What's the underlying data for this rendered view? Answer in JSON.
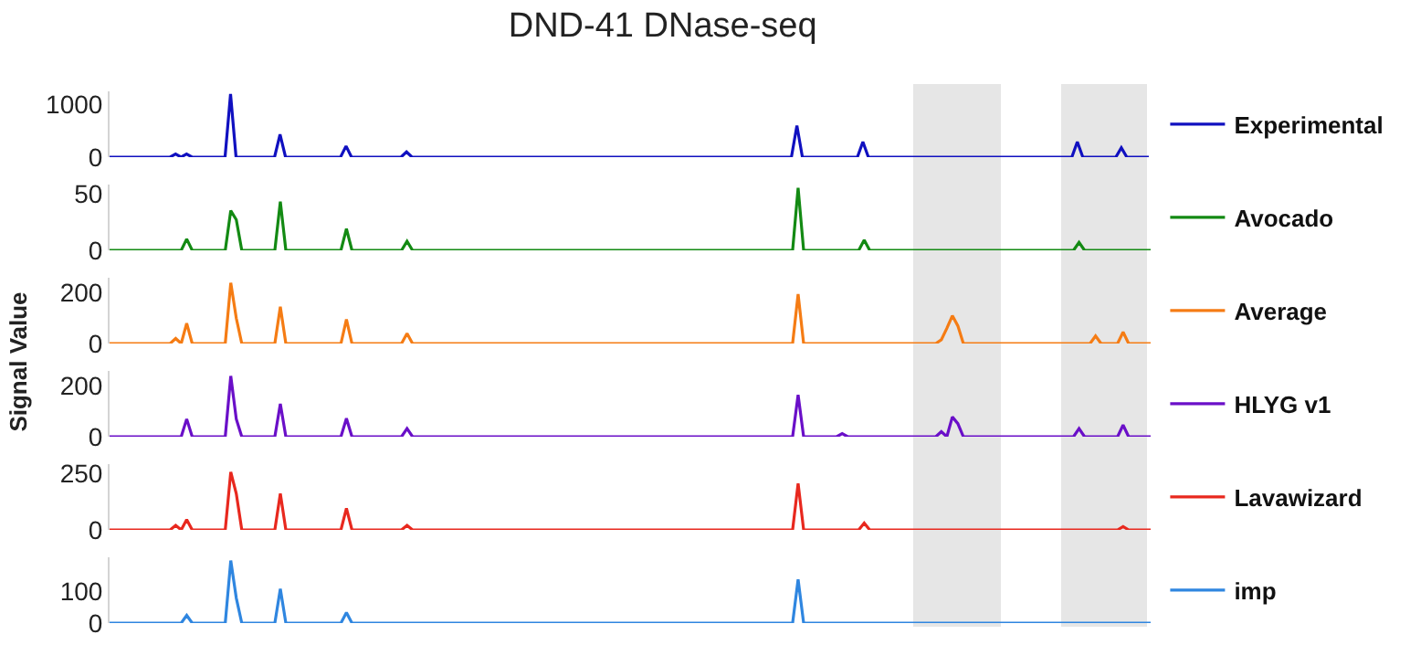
{
  "chart_data": [
    {
      "type": "line",
      "title": "DND-41 DNase-seq",
      "legend": "right",
      "tick_labels": "y",
      "grid": false,
      "marker": "none",
      "line_style": "solid",
      "ylim": [
        0,
        1250
      ],
      "yticks": [
        0,
        1000
      ],
      "categories": [
        null,
        null,
        null,
        null,
        null,
        null,
        null,
        null,
        null,
        null,
        null,
        null,
        null,
        null,
        null,
        null,
        null,
        null,
        null,
        null,
        null,
        null,
        null,
        null,
        null,
        null,
        null,
        null,
        null,
        null,
        null,
        null,
        null,
        null,
        null,
        null,
        null,
        null,
        null,
        null,
        null,
        null,
        null,
        null,
        null,
        null,
        null,
        null,
        null,
        null,
        null,
        null,
        null,
        null,
        null,
        null,
        null,
        null,
        null,
        null,
        null,
        null,
        null,
        null,
        null,
        null,
        null,
        null,
        null,
        null,
        null,
        null,
        null,
        null,
        null,
        null,
        null,
        null,
        null,
        null,
        null,
        null,
        null,
        null,
        null,
        null,
        null,
        null,
        null,
        null,
        null,
        null,
        null,
        null,
        null,
        null,
        null,
        null,
        null,
        null,
        null,
        null,
        null,
        null,
        null,
        null,
        null,
        null,
        null,
        null,
        null,
        null,
        null,
        null,
        null,
        null,
        null,
        null,
        null,
        null,
        null,
        null,
        null,
        null,
        null,
        null,
        null,
        null,
        null,
        null,
        null,
        null,
        null,
        null,
        null,
        null,
        null,
        null,
        null,
        null,
        null,
        null,
        null,
        null,
        null,
        null,
        null,
        null,
        null,
        null,
        null,
        null,
        null,
        null,
        null,
        null,
        null,
        null,
        null,
        null,
        null,
        null,
        null,
        null,
        null,
        null,
        null,
        null,
        null,
        null,
        null,
        null,
        null,
        null,
        null,
        null,
        null,
        null,
        null,
        null,
        null,
        null,
        null,
        null,
        null,
        null,
        null,
        null,
        null,
        null
      ],
      "series": [
        {
          "name": "Experimental",
          "color": "#1010c0",
          "values": [
            0,
            0,
            0,
            0,
            0,
            0,
            0,
            0,
            0,
            0,
            0,
            0,
            60,
            0,
            60,
            0,
            0,
            0,
            0,
            0,
            0,
            0,
            1200,
            0,
            0,
            0,
            0,
            0,
            0,
            0,
            0,
            430,
            0,
            0,
            0,
            0,
            0,
            0,
            0,
            0,
            0,
            0,
            0,
            210,
            0,
            0,
            0,
            0,
            0,
            0,
            0,
            0,
            0,
            0,
            100,
            0,
            0,
            0,
            0,
            0,
            0,
            0,
            0,
            0,
            0,
            0,
            0,
            0,
            0,
            0,
            0,
            0,
            0,
            0,
            0,
            0,
            0,
            0,
            0,
            0,
            0,
            0,
            0,
            0,
            0,
            0,
            0,
            0,
            0,
            0,
            0,
            0,
            0,
            0,
            0,
            0,
            0,
            0,
            0,
            0,
            0,
            0,
            0,
            0,
            0,
            0,
            0,
            0,
            0,
            0,
            0,
            0,
            0,
            0,
            0,
            0,
            0,
            0,
            0,
            0,
            0,
            0,
            0,
            0,
            0,
            600,
            0,
            0,
            0,
            0,
            0,
            0,
            0,
            0,
            0,
            0,
            0,
            290,
            0,
            0,
            0,
            0,
            0,
            0,
            0,
            0,
            0,
            0,
            0,
            0,
            0,
            0,
            0,
            0,
            0,
            0,
            0,
            0,
            0,
            0,
            0,
            0,
            0,
            0,
            0,
            0,
            0,
            0,
            0,
            0,
            0,
            0,
            0,
            0,
            0,
            0,
            290,
            0,
            0,
            0,
            0,
            0,
            0,
            0,
            180,
            0,
            0,
            0,
            0,
            0
          ]
        }
      ]
    },
    {
      "type": "line",
      "legend": "right",
      "tick_labels": "y",
      "grid": false,
      "marker": "none",
      "line_style": "solid",
      "ylim": [
        0,
        58
      ],
      "yticks": [
        0,
        50
      ],
      "categories": [
        null,
        null,
        null,
        null,
        null,
        null,
        null,
        null,
        null,
        null,
        null,
        null,
        null,
        null,
        null,
        null,
        null,
        null,
        null,
        null,
        null,
        null,
        null,
        null,
        null,
        null,
        null,
        null,
        null,
        null,
        null,
        null,
        null,
        null,
        null,
        null,
        null,
        null,
        null,
        null,
        null,
        null,
        null,
        null,
        null,
        null,
        null,
        null,
        null,
        null,
        null,
        null,
        null,
        null,
        null,
        null,
        null,
        null,
        null,
        null,
        null,
        null,
        null,
        null,
        null,
        null,
        null,
        null,
        null,
        null,
        null,
        null,
        null,
        null,
        null,
        null,
        null,
        null,
        null,
        null,
        null,
        null,
        null,
        null,
        null,
        null,
        null,
        null,
        null,
        null,
        null,
        null,
        null,
        null,
        null,
        null,
        null,
        null,
        null,
        null,
        null,
        null,
        null,
        null,
        null,
        null,
        null,
        null,
        null,
        null,
        null,
        null,
        null,
        null,
        null,
        null,
        null,
        null,
        null,
        null,
        null,
        null,
        null,
        null,
        null,
        null,
        null,
        null,
        null,
        null,
        null,
        null,
        null,
        null,
        null,
        null,
        null,
        null,
        null,
        null,
        null,
        null,
        null,
        null,
        null,
        null,
        null,
        null,
        null,
        null,
        null,
        null,
        null,
        null,
        null,
        null,
        null,
        null,
        null,
        null,
        null,
        null,
        null,
        null,
        null,
        null,
        null,
        null,
        null,
        null,
        null,
        null,
        null,
        null,
        null,
        null,
        null,
        null,
        null,
        null,
        null,
        null,
        null,
        null,
        null,
        null,
        null,
        null,
        null,
        null
      ],
      "series": [
        {
          "name": "Avocado",
          "color": "#138a13",
          "values": [
            0,
            0,
            0,
            0,
            0,
            0,
            0,
            0,
            0,
            0,
            0,
            0,
            0,
            0,
            10,
            0,
            0,
            0,
            0,
            0,
            0,
            0,
            35,
            27,
            0,
            0,
            0,
            0,
            0,
            0,
            0,
            43,
            0,
            0,
            0,
            0,
            0,
            0,
            0,
            0,
            0,
            0,
            0,
            19,
            0,
            0,
            0,
            0,
            0,
            0,
            0,
            0,
            0,
            0,
            8,
            0,
            0,
            0,
            0,
            0,
            0,
            0,
            0,
            0,
            0,
            0,
            0,
            0,
            0,
            0,
            0,
            0,
            0,
            0,
            0,
            0,
            0,
            0,
            0,
            0,
            0,
            0,
            0,
            0,
            0,
            0,
            0,
            0,
            0,
            0,
            0,
            0,
            0,
            0,
            0,
            0,
            0,
            0,
            0,
            0,
            0,
            0,
            0,
            0,
            0,
            0,
            0,
            0,
            0,
            0,
            0,
            0,
            0,
            0,
            0,
            0,
            0,
            0,
            0,
            0,
            0,
            0,
            0,
            0,
            0,
            55,
            0,
            0,
            0,
            0,
            0,
            0,
            0,
            0,
            0,
            0,
            0,
            9,
            0,
            0,
            0,
            0,
            0,
            0,
            0,
            0,
            0,
            0,
            0,
            0,
            0,
            0,
            0,
            0,
            0,
            0,
            0,
            0,
            0,
            0,
            0,
            0,
            0,
            0,
            0,
            0,
            0,
            0,
            0,
            0,
            0,
            0,
            0,
            0,
            0,
            0,
            7,
            0,
            0,
            0,
            0,
            0,
            0,
            0,
            0,
            0,
            0,
            0,
            0,
            0
          ]
        }
      ]
    },
    {
      "type": "line",
      "ylabel": "Signal Value",
      "legend": "right",
      "tick_labels": "y",
      "grid": false,
      "marker": "none",
      "line_style": "solid",
      "ylim": [
        0,
        260
      ],
      "yticks": [
        0,
        200
      ],
      "categories": [
        null,
        null,
        null,
        null,
        null,
        null,
        null,
        null,
        null,
        null,
        null,
        null,
        null,
        null,
        null,
        null,
        null,
        null,
        null,
        null,
        null,
        null,
        null,
        null,
        null,
        null,
        null,
        null,
        null,
        null,
        null,
        null,
        null,
        null,
        null,
        null,
        null,
        null,
        null,
        null,
        null,
        null,
        null,
        null,
        null,
        null,
        null,
        null,
        null,
        null,
        null,
        null,
        null,
        null,
        null,
        null,
        null,
        null,
        null,
        null,
        null,
        null,
        null,
        null,
        null,
        null,
        null,
        null,
        null,
        null,
        null,
        null,
        null,
        null,
        null,
        null,
        null,
        null,
        null,
        null,
        null,
        null,
        null,
        null,
        null,
        null,
        null,
        null,
        null,
        null,
        null,
        null,
        null,
        null,
        null,
        null,
        null,
        null,
        null,
        null,
        null,
        null,
        null,
        null,
        null,
        null,
        null,
        null,
        null,
        null,
        null,
        null,
        null,
        null,
        null,
        null,
        null,
        null,
        null,
        null,
        null,
        null,
        null,
        null,
        null,
        null,
        null,
        null,
        null,
        null,
        null,
        null,
        null,
        null,
        null,
        null,
        null,
        null,
        null,
        null,
        null,
        null,
        null,
        null,
        null,
        null,
        null,
        null,
        null,
        null,
        null,
        null,
        null,
        null,
        null,
        null,
        null,
        null,
        null,
        null,
        null,
        null,
        null,
        null,
        null,
        null,
        null,
        null,
        null,
        null,
        null,
        null,
        null,
        null,
        null,
        null,
        null,
        null,
        null,
        null,
        null,
        null,
        null,
        null,
        null,
        null,
        null,
        null,
        null,
        null
      ],
      "series": [
        {
          "name": "Average",
          "color": "#f57c14",
          "values": [
            0,
            0,
            0,
            0,
            0,
            0,
            0,
            0,
            0,
            0,
            0,
            0,
            20,
            0,
            80,
            0,
            0,
            0,
            0,
            0,
            0,
            0,
            240,
            100,
            0,
            0,
            0,
            0,
            0,
            0,
            0,
            145,
            0,
            0,
            0,
            0,
            0,
            0,
            0,
            0,
            0,
            0,
            0,
            95,
            0,
            0,
            0,
            0,
            0,
            0,
            0,
            0,
            0,
            0,
            40,
            0,
            0,
            0,
            0,
            0,
            0,
            0,
            0,
            0,
            0,
            0,
            0,
            0,
            0,
            0,
            0,
            0,
            0,
            0,
            0,
            0,
            0,
            0,
            0,
            0,
            0,
            0,
            0,
            0,
            0,
            0,
            0,
            0,
            0,
            0,
            0,
            0,
            0,
            0,
            0,
            0,
            0,
            0,
            0,
            0,
            0,
            0,
            0,
            0,
            0,
            0,
            0,
            0,
            0,
            0,
            0,
            0,
            0,
            0,
            0,
            0,
            0,
            0,
            0,
            0,
            0,
            0,
            0,
            0,
            0,
            195,
            0,
            0,
            0,
            0,
            0,
            0,
            0,
            0,
            0,
            0,
            0,
            0,
            0,
            0,
            0,
            0,
            0,
            0,
            0,
            0,
            0,
            0,
            0,
            0,
            0,
            15,
            60,
            110,
            70,
            0,
            0,
            0,
            0,
            0,
            0,
            0,
            0,
            0,
            0,
            0,
            0,
            0,
            0,
            0,
            0,
            0,
            0,
            0,
            0,
            0,
            0,
            0,
            0,
            30,
            0,
            0,
            0,
            0,
            45,
            0,
            0,
            0,
            0,
            0
          ]
        }
      ]
    },
    {
      "type": "line",
      "legend": "right",
      "tick_labels": "y",
      "grid": false,
      "marker": "none",
      "line_style": "solid",
      "ylim": [
        0,
        260
      ],
      "yticks": [
        0,
        200
      ],
      "categories": [
        null,
        null,
        null,
        null,
        null,
        null,
        null,
        null,
        null,
        null,
        null,
        null,
        null,
        null,
        null,
        null,
        null,
        null,
        null,
        null,
        null,
        null,
        null,
        null,
        null,
        null,
        null,
        null,
        null,
        null,
        null,
        null,
        null,
        null,
        null,
        null,
        null,
        null,
        null,
        null,
        null,
        null,
        null,
        null,
        null,
        null,
        null,
        null,
        null,
        null,
        null,
        null,
        null,
        null,
        null,
        null,
        null,
        null,
        null,
        null,
        null,
        null,
        null,
        null,
        null,
        null,
        null,
        null,
        null,
        null,
        null,
        null,
        null,
        null,
        null,
        null,
        null,
        null,
        null,
        null,
        null,
        null,
        null,
        null,
        null,
        null,
        null,
        null,
        null,
        null,
        null,
        null,
        null,
        null,
        null,
        null,
        null,
        null,
        null,
        null,
        null,
        null,
        null,
        null,
        null,
        null,
        null,
        null,
        null,
        null,
        null,
        null,
        null,
        null,
        null,
        null,
        null,
        null,
        null,
        null,
        null,
        null,
        null,
        null,
        null,
        null,
        null,
        null,
        null,
        null,
        null,
        null,
        null,
        null,
        null,
        null,
        null,
        null,
        null,
        null,
        null,
        null,
        null,
        null,
        null,
        null,
        null,
        null,
        null,
        null,
        null,
        null,
        null,
        null,
        null,
        null,
        null,
        null,
        null,
        null,
        null,
        null,
        null,
        null,
        null,
        null,
        null,
        null,
        null,
        null,
        null,
        null,
        null,
        null,
        null,
        null,
        null,
        null,
        null,
        null,
        null,
        null,
        null,
        null,
        null,
        null,
        null,
        null,
        null,
        null
      ],
      "series": [
        {
          "name": "HLYG v1",
          "color": "#6a0fc8",
          "values": [
            0,
            0,
            0,
            0,
            0,
            0,
            0,
            0,
            0,
            0,
            0,
            0,
            0,
            0,
            70,
            0,
            0,
            0,
            0,
            0,
            0,
            0,
            240,
            70,
            0,
            0,
            0,
            0,
            0,
            0,
            0,
            130,
            0,
            0,
            0,
            0,
            0,
            0,
            0,
            0,
            0,
            0,
            0,
            72,
            0,
            0,
            0,
            0,
            0,
            0,
            0,
            0,
            0,
            0,
            32,
            0,
            0,
            0,
            0,
            0,
            0,
            0,
            0,
            0,
            0,
            0,
            0,
            0,
            0,
            0,
            0,
            0,
            0,
            0,
            0,
            0,
            0,
            0,
            0,
            0,
            0,
            0,
            0,
            0,
            0,
            0,
            0,
            0,
            0,
            0,
            0,
            0,
            0,
            0,
            0,
            0,
            0,
            0,
            0,
            0,
            0,
            0,
            0,
            0,
            0,
            0,
            0,
            0,
            0,
            0,
            0,
            0,
            0,
            0,
            0,
            0,
            0,
            0,
            0,
            0,
            0,
            0,
            0,
            0,
            0,
            165,
            0,
            0,
            0,
            0,
            0,
            0,
            0,
            12,
            0,
            0,
            0,
            0,
            0,
            0,
            0,
            0,
            0,
            0,
            0,
            0,
            0,
            0,
            0,
            0,
            0,
            20,
            0,
            78,
            52,
            0,
            0,
            0,
            0,
            0,
            0,
            0,
            0,
            0,
            0,
            0,
            0,
            0,
            0,
            0,
            0,
            0,
            0,
            0,
            0,
            0,
            32,
            0,
            0,
            0,
            0,
            0,
            0,
            0,
            46,
            0,
            0,
            0,
            0,
            0
          ]
        }
      ]
    },
    {
      "type": "line",
      "legend": "right",
      "tick_labels": "y",
      "grid": false,
      "marker": "none",
      "line_style": "solid",
      "ylim": [
        0,
        290
      ],
      "yticks": [
        0,
        250
      ],
      "categories": [
        null,
        null,
        null,
        null,
        null,
        null,
        null,
        null,
        null,
        null,
        null,
        null,
        null,
        null,
        null,
        null,
        null,
        null,
        null,
        null,
        null,
        null,
        null,
        null,
        null,
        null,
        null,
        null,
        null,
        null,
        null,
        null,
        null,
        null,
        null,
        null,
        null,
        null,
        null,
        null,
        null,
        null,
        null,
        null,
        null,
        null,
        null,
        null,
        null,
        null,
        null,
        null,
        null,
        null,
        null,
        null,
        null,
        null,
        null,
        null,
        null,
        null,
        null,
        null,
        null,
        null,
        null,
        null,
        null,
        null,
        null,
        null,
        null,
        null,
        null,
        null,
        null,
        null,
        null,
        null,
        null,
        null,
        null,
        null,
        null,
        null,
        null,
        null,
        null,
        null,
        null,
        null,
        null,
        null,
        null,
        null,
        null,
        null,
        null,
        null,
        null,
        null,
        null,
        null,
        null,
        null,
        null,
        null,
        null,
        null,
        null,
        null,
        null,
        null,
        null,
        null,
        null,
        null,
        null,
        null,
        null,
        null,
        null,
        null,
        null,
        null,
        null,
        null,
        null,
        null,
        null,
        null,
        null,
        null,
        null,
        null,
        null,
        null,
        null,
        null,
        null,
        null,
        null,
        null,
        null,
        null,
        null,
        null,
        null,
        null,
        null,
        null,
        null,
        null,
        null,
        null,
        null,
        null,
        null,
        null,
        null,
        null,
        null,
        null,
        null,
        null,
        null,
        null,
        null,
        null,
        null,
        null,
        null,
        null,
        null,
        null,
        null,
        null,
        null,
        null,
        null,
        null,
        null,
        null,
        null,
        null,
        null,
        null,
        null,
        null
      ],
      "series": [
        {
          "name": "Lavawizard",
          "color": "#e8281e",
          "values": [
            0,
            0,
            0,
            0,
            0,
            0,
            0,
            0,
            0,
            0,
            0,
            0,
            20,
            0,
            45,
            0,
            0,
            0,
            0,
            0,
            0,
            0,
            255,
            160,
            0,
            0,
            0,
            0,
            0,
            0,
            0,
            160,
            0,
            0,
            0,
            0,
            0,
            0,
            0,
            0,
            0,
            0,
            0,
            95,
            0,
            0,
            0,
            0,
            0,
            0,
            0,
            0,
            0,
            0,
            20,
            0,
            0,
            0,
            0,
            0,
            0,
            0,
            0,
            0,
            0,
            0,
            0,
            0,
            0,
            0,
            0,
            0,
            0,
            0,
            0,
            0,
            0,
            0,
            0,
            0,
            0,
            0,
            0,
            0,
            0,
            0,
            0,
            0,
            0,
            0,
            0,
            0,
            0,
            0,
            0,
            0,
            0,
            0,
            0,
            0,
            0,
            0,
            0,
            0,
            0,
            0,
            0,
            0,
            0,
            0,
            0,
            0,
            0,
            0,
            0,
            0,
            0,
            0,
            0,
            0,
            0,
            0,
            0,
            0,
            0,
            205,
            0,
            0,
            0,
            0,
            0,
            0,
            0,
            0,
            0,
            0,
            0,
            30,
            0,
            0,
            0,
            0,
            0,
            0,
            0,
            0,
            0,
            0,
            0,
            0,
            0,
            0,
            0,
            0,
            0,
            0,
            0,
            0,
            0,
            0,
            0,
            0,
            0,
            0,
            0,
            0,
            0,
            0,
            0,
            0,
            0,
            0,
            0,
            0,
            0,
            0,
            0,
            0,
            0,
            0,
            0,
            0,
            0,
            0,
            15,
            0,
            0,
            0,
            0,
            0
          ]
        }
      ]
    },
    {
      "type": "line",
      "legend": "right",
      "tick_labels": "y",
      "grid": false,
      "marker": "none",
      "line_style": "solid",
      "ylim": [
        0,
        205
      ],
      "yticks": [
        0,
        100
      ],
      "categories": [
        null,
        null,
        null,
        null,
        null,
        null,
        null,
        null,
        null,
        null,
        null,
        null,
        null,
        null,
        null,
        null,
        null,
        null,
        null,
        null,
        null,
        null,
        null,
        null,
        null,
        null,
        null,
        null,
        null,
        null,
        null,
        null,
        null,
        null,
        null,
        null,
        null,
        null,
        null,
        null,
        null,
        null,
        null,
        null,
        null,
        null,
        null,
        null,
        null,
        null,
        null,
        null,
        null,
        null,
        null,
        null,
        null,
        null,
        null,
        null,
        null,
        null,
        null,
        null,
        null,
        null,
        null,
        null,
        null,
        null,
        null,
        null,
        null,
        null,
        null,
        null,
        null,
        null,
        null,
        null,
        null,
        null,
        null,
        null,
        null,
        null,
        null,
        null,
        null,
        null,
        null,
        null,
        null,
        null,
        null,
        null,
        null,
        null,
        null,
        null,
        null,
        null,
        null,
        null,
        null,
        null,
        null,
        null,
        null,
        null,
        null,
        null,
        null,
        null,
        null,
        null,
        null,
        null,
        null,
        null,
        null,
        null,
        null,
        null,
        null,
        null,
        null,
        null,
        null,
        null,
        null,
        null,
        null,
        null,
        null,
        null,
        null,
        null,
        null,
        null,
        null,
        null,
        null,
        null,
        null,
        null,
        null,
        null,
        null,
        null,
        null,
        null,
        null,
        null,
        null,
        null,
        null,
        null,
        null,
        null,
        null,
        null,
        null,
        null,
        null,
        null,
        null,
        null,
        null,
        null,
        null,
        null,
        null,
        null,
        null,
        null,
        null,
        null,
        null,
        null,
        null,
        null,
        null,
        null,
        null,
        null,
        null,
        null,
        null,
        null
      ],
      "series": [
        {
          "name": "imp",
          "color": "#2f86e0",
          "values": [
            0,
            0,
            0,
            0,
            0,
            0,
            0,
            0,
            0,
            0,
            0,
            0,
            0,
            0,
            24,
            0,
            0,
            0,
            0,
            0,
            0,
            0,
            195,
            78,
            0,
            0,
            0,
            0,
            0,
            0,
            0,
            107,
            0,
            0,
            0,
            0,
            0,
            0,
            0,
            0,
            0,
            0,
            0,
            33,
            0,
            0,
            0,
            0,
            0,
            0,
            0,
            0,
            0,
            0,
            0,
            0,
            0,
            0,
            0,
            0,
            0,
            0,
            0,
            0,
            0,
            0,
            0,
            0,
            0,
            0,
            0,
            0,
            0,
            0,
            0,
            0,
            0,
            0,
            0,
            0,
            0,
            0,
            0,
            0,
            0,
            0,
            0,
            0,
            0,
            0,
            0,
            0,
            0,
            0,
            0,
            0,
            0,
            0,
            0,
            0,
            0,
            0,
            0,
            0,
            0,
            0,
            0,
            0,
            0,
            0,
            0,
            0,
            0,
            0,
            0,
            0,
            0,
            0,
            0,
            0,
            0,
            0,
            0,
            0,
            0,
            136,
            0,
            0,
            0,
            0,
            0,
            0,
            0,
            0,
            0,
            0,
            0,
            0,
            0,
            0,
            0,
            0,
            0,
            0,
            0,
            0,
            0,
            0,
            0,
            0,
            0,
            0,
            0,
            0,
            0,
            0,
            0,
            0,
            0,
            0,
            0,
            0,
            0,
            0,
            0,
            0,
            0,
            0,
            0,
            0,
            0,
            0,
            0,
            0,
            0,
            0,
            0,
            0,
            0,
            0,
            0,
            0,
            0,
            0,
            0,
            0,
            0,
            0,
            0,
            0
          ]
        }
      ]
    }
  ]
}
